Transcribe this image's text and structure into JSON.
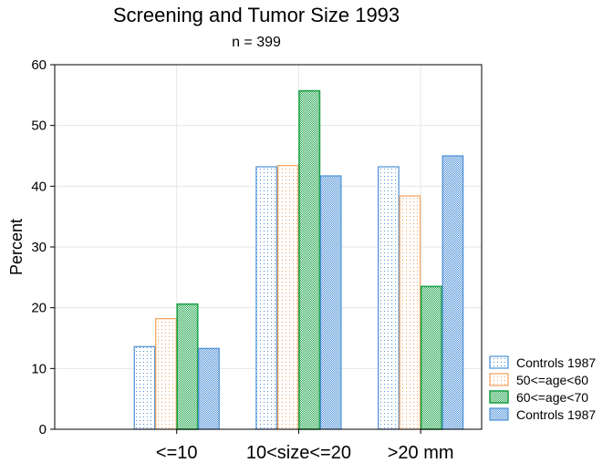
{
  "chart_data": {
    "type": "bar",
    "title": "Screening and Tumor Size 1993",
    "subtitle": "n = 399",
    "ylabel": "Percent",
    "xlabel": "",
    "categories": [
      "<=10",
      "10<size<=20",
      ">20 mm"
    ],
    "ylim": [
      0,
      60
    ],
    "yticks": [
      0,
      10,
      20,
      30,
      40,
      50,
      60
    ],
    "grid": true,
    "legend_position": "bottom-right",
    "series": [
      {
        "name": "Controls 1987",
        "values": [
          13.6,
          43.2,
          43.2
        ],
        "color": "#4a8fd6",
        "pattern": "dots-light"
      },
      {
        "name": "50<=age<60",
        "values": [
          18.2,
          43.4,
          38.4
        ],
        "color": "#f2a05a",
        "pattern": "dots-light"
      },
      {
        "name": "60<=age<70",
        "values": [
          20.6,
          55.7,
          23.5
        ],
        "color": "#1fa34a",
        "pattern": "checker"
      },
      {
        "name": "Controls 1987",
        "values": [
          13.3,
          41.7,
          45.0
        ],
        "color": "#4a8fd6",
        "pattern": "checker"
      }
    ]
  }
}
